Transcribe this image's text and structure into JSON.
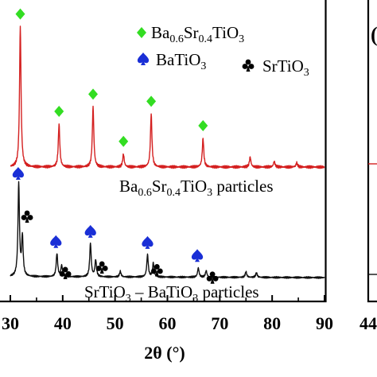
{
  "chart_data": [
    {
      "type": "line",
      "title": "",
      "xlabel": "2θ (°)",
      "ylabel": "",
      "xlim": [
        30,
        90
      ],
      "x_ticks": [
        30,
        40,
        50,
        60,
        70,
        80,
        90
      ],
      "x_tick_labels": [
        "30",
        "40",
        "50",
        "60",
        "70",
        "80",
        "90"
      ],
      "y_ticks_visible": false,
      "grid": false,
      "legend": {
        "placement": "top-right",
        "entries": [
          {
            "marker": "diamond",
            "color": "#33dd22",
            "label": "Ba0.6Sr0.4TiO3",
            "main": "Ba",
            "sub1": "0.6",
            "mid": "Sr",
            "sub2": "0.4",
            "tail": "TiO",
            "sub3": "3"
          },
          {
            "marker": "spade",
            "color": "#1a2fd6",
            "label": "BaTiO3",
            "main": "BaTiO",
            "sub1": "3"
          },
          {
            "marker": "club",
            "color": "#000000",
            "label": "SrTiO3",
            "main": "SrTiO",
            "sub1": "3"
          }
        ]
      },
      "series": [
        {
          "name": "Ba0.6Sr0.4TiO3 particles",
          "color": "#d42020",
          "label_parts": {
            "a": "Ba",
            "s1": "0.6",
            "b": "Sr",
            "s2": "0.4",
            "c": "TiO",
            "s3": "3",
            "d": " particles"
          },
          "baseline": 100,
          "peaks": [
            {
              "x": 31.9,
              "height": 0.98
            },
            {
              "x": 39.3,
              "height": 0.3
            },
            {
              "x": 45.8,
              "height": 0.42
            },
            {
              "x": 51.6,
              "height": 0.09
            },
            {
              "x": 56.9,
              "height": 0.37
            },
            {
              "x": 66.8,
              "height": 0.2
            },
            {
              "x": 75.8,
              "height": 0.07
            },
            {
              "x": 80.4,
              "height": 0.04
            },
            {
              "x": 84.7,
              "height": 0.03
            }
          ],
          "markers": [
            {
              "x": 31.9,
              "symbol": "diamond"
            },
            {
              "x": 39.3,
              "symbol": "diamond"
            },
            {
              "x": 45.8,
              "symbol": "diamond"
            },
            {
              "x": 51.6,
              "symbol": "diamond"
            },
            {
              "x": 56.9,
              "symbol": "diamond"
            },
            {
              "x": 66.8,
              "symbol": "diamond"
            }
          ]
        },
        {
          "name": "SrTiO3 – BaTiO3 particles",
          "color": "#111111",
          "label_parts": {
            "a": "SrTiO",
            "s1": "3",
            "b": " – BaTiO",
            "s2": "3",
            "c": " particles"
          },
          "baseline": 0,
          "peaks": [
            {
              "x": 31.6,
              "height": 1.0
            },
            {
              "x": 32.3,
              "height": 0.42
            },
            {
              "x": 38.9,
              "height": 0.25
            },
            {
              "x": 39.8,
              "height": 0.12
            },
            {
              "x": 45.3,
              "height": 0.36
            },
            {
              "x": 46.3,
              "height": 0.18
            },
            {
              "x": 51.0,
              "height": 0.06
            },
            {
              "x": 56.2,
              "height": 0.24
            },
            {
              "x": 57.3,
              "height": 0.15
            },
            {
              "x": 65.9,
              "height": 0.1
            },
            {
              "x": 67.4,
              "height": 0.07
            },
            {
              "x": 75.0,
              "height": 0.06
            },
            {
              "x": 77.0,
              "height": 0.05
            }
          ],
          "markers": [
            {
              "x": 31.5,
              "symbol": "spade"
            },
            {
              "x": 33.2,
              "symbol": "club"
            },
            {
              "x": 38.7,
              "symbol": "spade"
            },
            {
              "x": 40.5,
              "symbol": "club"
            },
            {
              "x": 45.3,
              "symbol": "spade"
            },
            {
              "x": 47.5,
              "symbol": "club"
            },
            {
              "x": 56.2,
              "symbol": "spade"
            },
            {
              "x": 58.0,
              "symbol": "club"
            },
            {
              "x": 65.7,
              "symbol": "spade"
            },
            {
              "x": 68.6,
              "symbol": "club"
            }
          ]
        }
      ]
    },
    {
      "type": "line",
      "panel_label": "(",
      "xlim": [
        44,
        null
      ],
      "x_ticks": [
        44
      ],
      "x_tick_labels": [
        "44"
      ],
      "series": []
    }
  ]
}
